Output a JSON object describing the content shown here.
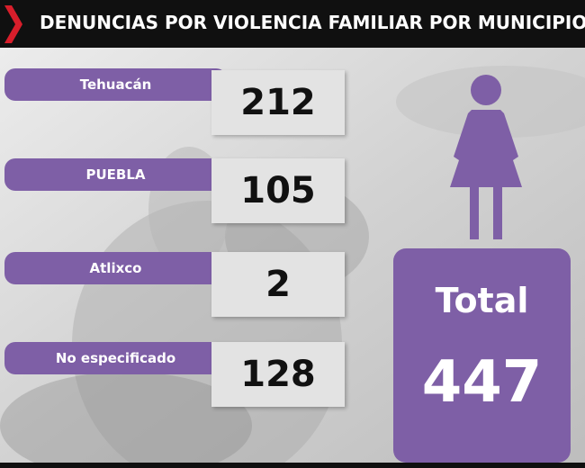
{
  "header": {
    "title": "DENUNCIAS POR VIOLENCIA FAMILIAR POR MUNICIPIO"
  },
  "colors": {
    "accent_purple": "#7e5fa6",
    "chevron_red": "#d81e2b",
    "header_bg": "#101010",
    "value_box": "#e3e3e3"
  },
  "icons": [
    "chevron-right-icon",
    "woman-icon"
  ],
  "chart_data": {
    "type": "table",
    "title": "DENUNCIAS POR VIOLENCIA FAMILIAR POR MUNICIPIO",
    "categories": [
      "Tehuacán",
      "PUEBLA",
      "Atlixco",
      "No especificado"
    ],
    "values": [
      "212",
      "105",
      "2",
      "128"
    ],
    "total_label": "Total",
    "total_value": "447"
  }
}
